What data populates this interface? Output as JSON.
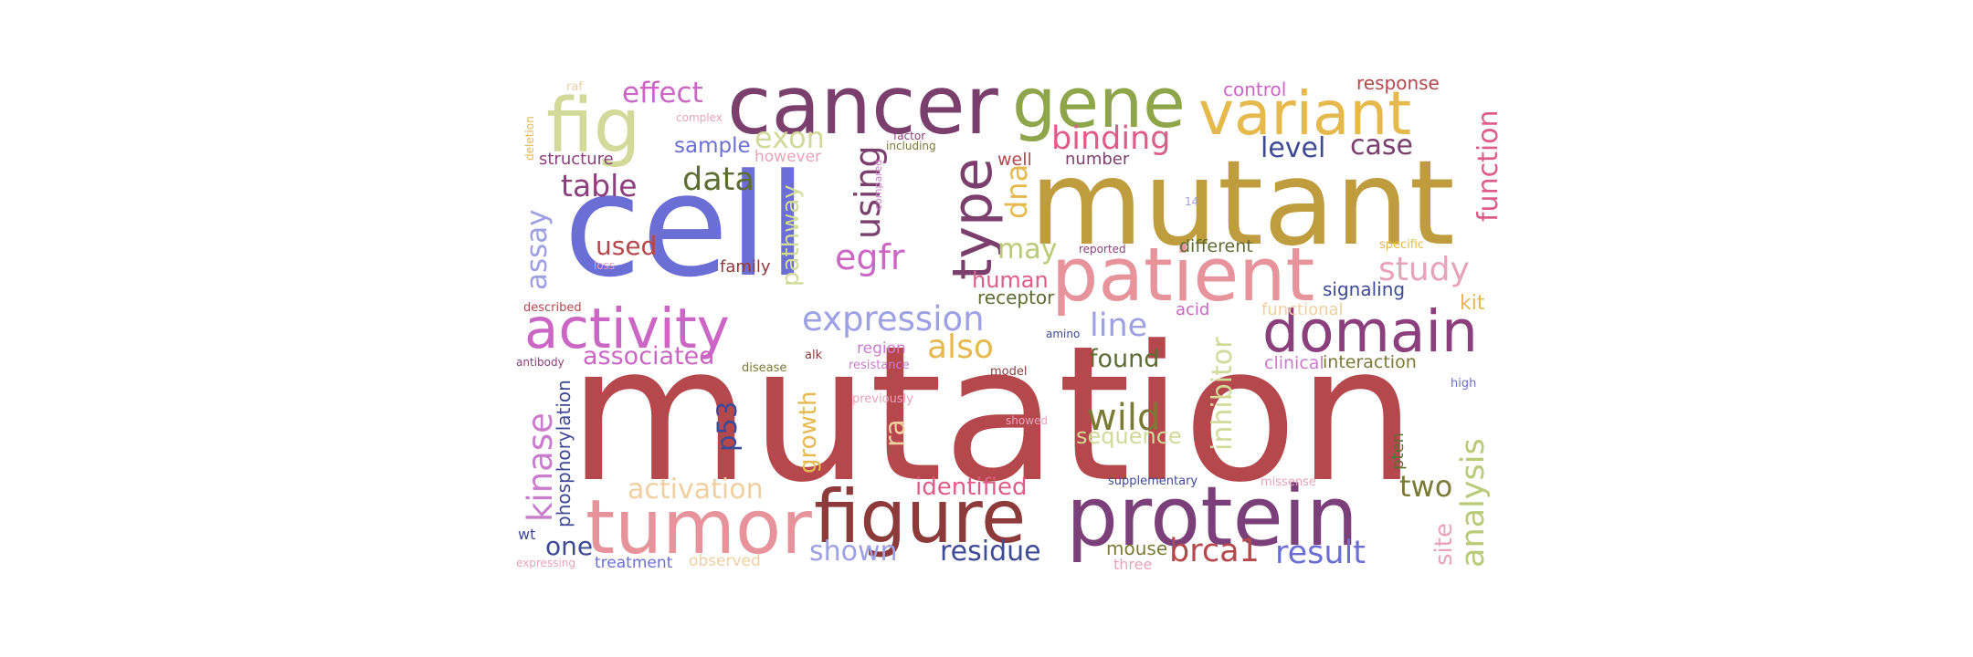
{
  "words": [
    {
      "text": "mutation",
      "color": "#b5484c"
    },
    {
      "text": "cell",
      "color": "#6b6ed4"
    },
    {
      "text": "mutant",
      "color": "#bf9c3d"
    },
    {
      "text": "protein",
      "color": "#7b3f79"
    },
    {
      "text": "cancer",
      "color": "#7b3f6e"
    },
    {
      "text": "patient",
      "color": "#e6939c"
    },
    {
      "text": "tumor",
      "color": "#e6939c"
    },
    {
      "text": "figure",
      "color": "#8c3a3a"
    },
    {
      "text": "gene",
      "color": "#8fa54a"
    },
    {
      "text": "variant",
      "color": "#e6b94d"
    },
    {
      "text": "fig",
      "color": "#d1da98"
    },
    {
      "text": "domain",
      "color": "#8c3f7d"
    },
    {
      "text": "activity",
      "color": "#cb66c5"
    },
    {
      "text": "type",
      "color": "#7b3f6e"
    },
    {
      "text": "wild",
      "color": "#7b7a35"
    },
    {
      "text": "expression",
      "color": "#9da0e3"
    },
    {
      "text": "analysis",
      "color": "#b9cb77"
    },
    {
      "text": "kinase",
      "color": "#c97dcc"
    },
    {
      "text": "study",
      "color": "#e8a3b8"
    },
    {
      "text": "binding",
      "color": "#de5d86"
    },
    {
      "text": "data",
      "color": "#5e6e32"
    },
    {
      "text": "table",
      "color": "#8c3f7d"
    },
    {
      "text": "brca1",
      "color": "#b5484c"
    },
    {
      "text": "result",
      "color": "#6b6ed4"
    },
    {
      "text": "using",
      "color": "#7b3f6e"
    },
    {
      "text": "egfr",
      "color": "#cb66c5"
    },
    {
      "text": "also",
      "color": "#e6b94d"
    },
    {
      "text": "line",
      "color": "#9da0e3"
    },
    {
      "text": "activation",
      "color": "#f0cfa0"
    },
    {
      "text": "exon",
      "color": "#d1da98"
    },
    {
      "text": "assay",
      "color": "#9da0e3"
    },
    {
      "text": "effect",
      "color": "#cb66c5"
    },
    {
      "text": "dna",
      "color": "#e6b94d"
    },
    {
      "text": "inhibitor",
      "color": "#d1da98"
    },
    {
      "text": "function",
      "color": "#de5d86"
    },
    {
      "text": "used",
      "color": "#b5484c"
    },
    {
      "text": "level",
      "color": "#3f4a96"
    },
    {
      "text": "case",
      "color": "#7b3f6e"
    },
    {
      "text": "may",
      "color": "#b9cb77"
    },
    {
      "text": "shown",
      "color": "#9da0e3"
    },
    {
      "text": "residue",
      "color": "#3f4a96"
    },
    {
      "text": "two",
      "color": "#7b7a35"
    },
    {
      "text": "one",
      "color": "#3f4a96"
    },
    {
      "text": "p53",
      "color": "#3f4a96"
    },
    {
      "text": "ra",
      "color": "#f0cfa0"
    },
    {
      "text": "pathway",
      "color": "#d1da98"
    },
    {
      "text": "growth",
      "color": "#e6b94d"
    },
    {
      "text": "associated",
      "color": "#cb66c5"
    },
    {
      "text": "identified",
      "color": "#de5d86"
    },
    {
      "text": "found",
      "color": "#5e6e32"
    },
    {
      "text": "human",
      "color": "#de5d86"
    },
    {
      "text": "site",
      "color": "#e8a3b8"
    },
    {
      "text": "sample",
      "color": "#6b6ed4"
    },
    {
      "text": "sequence",
      "color": "#d1da98"
    },
    {
      "text": "phosphorylation",
      "color": "#3f4a96"
    },
    {
      "text": "receptor",
      "color": "#5e6e32"
    },
    {
      "text": "control",
      "color": "#cb66c5"
    },
    {
      "text": "response",
      "color": "#b5484c"
    },
    {
      "text": "signaling",
      "color": "#3f4a96"
    },
    {
      "text": "kit",
      "color": "#e6b94d"
    },
    {
      "text": "interaction",
      "color": "#7b7a35"
    },
    {
      "text": "clinical",
      "color": "#c97dcc"
    },
    {
      "text": "mouse",
      "color": "#7b7a35"
    },
    {
      "text": "different",
      "color": "#5e6e32"
    },
    {
      "text": "structure",
      "color": "#8c3f7d"
    },
    {
      "text": "however",
      "color": "#e8a3b8"
    },
    {
      "text": "well",
      "color": "#b5484c"
    },
    {
      "text": "number",
      "color": "#7b3f6e"
    },
    {
      "text": "family",
      "color": "#8c3a3a"
    },
    {
      "text": "region",
      "color": "#c97dcc"
    },
    {
      "text": "acid",
      "color": "#cb66c5"
    },
    {
      "text": "pten",
      "color": "#5e6e32"
    },
    {
      "text": "functional",
      "color": "#f0cfa0"
    },
    {
      "text": "treatment",
      "color": "#6b6ed4"
    },
    {
      "text": "observed",
      "color": "#f0cfa0"
    },
    {
      "text": "three",
      "color": "#e8a3b8"
    },
    {
      "text": "wt",
      "color": "#3f4a96"
    },
    {
      "text": "supplementary",
      "color": "#3f4a96"
    },
    {
      "text": "missense",
      "color": "#e8a3b8"
    },
    {
      "text": "resistance",
      "color": "#c97dcc"
    },
    {
      "text": "model",
      "color": "#8c3a3a"
    },
    {
      "text": "disease",
      "color": "#7b7a35"
    },
    {
      "text": "alk",
      "color": "#8c3a3a"
    },
    {
      "text": "amino",
      "color": "#3f4a96"
    },
    {
      "text": "antibody",
      "color": "#8c3f7d"
    },
    {
      "text": "described",
      "color": "#b5484c"
    },
    {
      "text": "previously",
      "color": "#e8a3b8"
    },
    {
      "text": "showed",
      "color": "#e8a3b8"
    },
    {
      "text": "high",
      "color": "#6b6ed4"
    },
    {
      "text": "specific",
      "color": "#e6b94d"
    },
    {
      "text": "reported",
      "color": "#8c3f7d"
    },
    {
      "text": "expressing",
      "color": "#e8a3b8"
    },
    {
      "text": "deletion",
      "color": "#e6b94d"
    },
    {
      "text": "raf",
      "color": "#f0cfa0"
    },
    {
      "text": "complex",
      "color": "#e8a3b8"
    },
    {
      "text": "factor",
      "color": "#8c3f7d"
    },
    {
      "text": "including",
      "color": "#7b7a35"
    },
    {
      "text": "compared",
      "color": "#c97dcc"
    },
    {
      "text": "loss",
      "color": "#e8a3b8"
    },
    {
      "text": "14",
      "color": "#9da0e3"
    }
  ]
}
